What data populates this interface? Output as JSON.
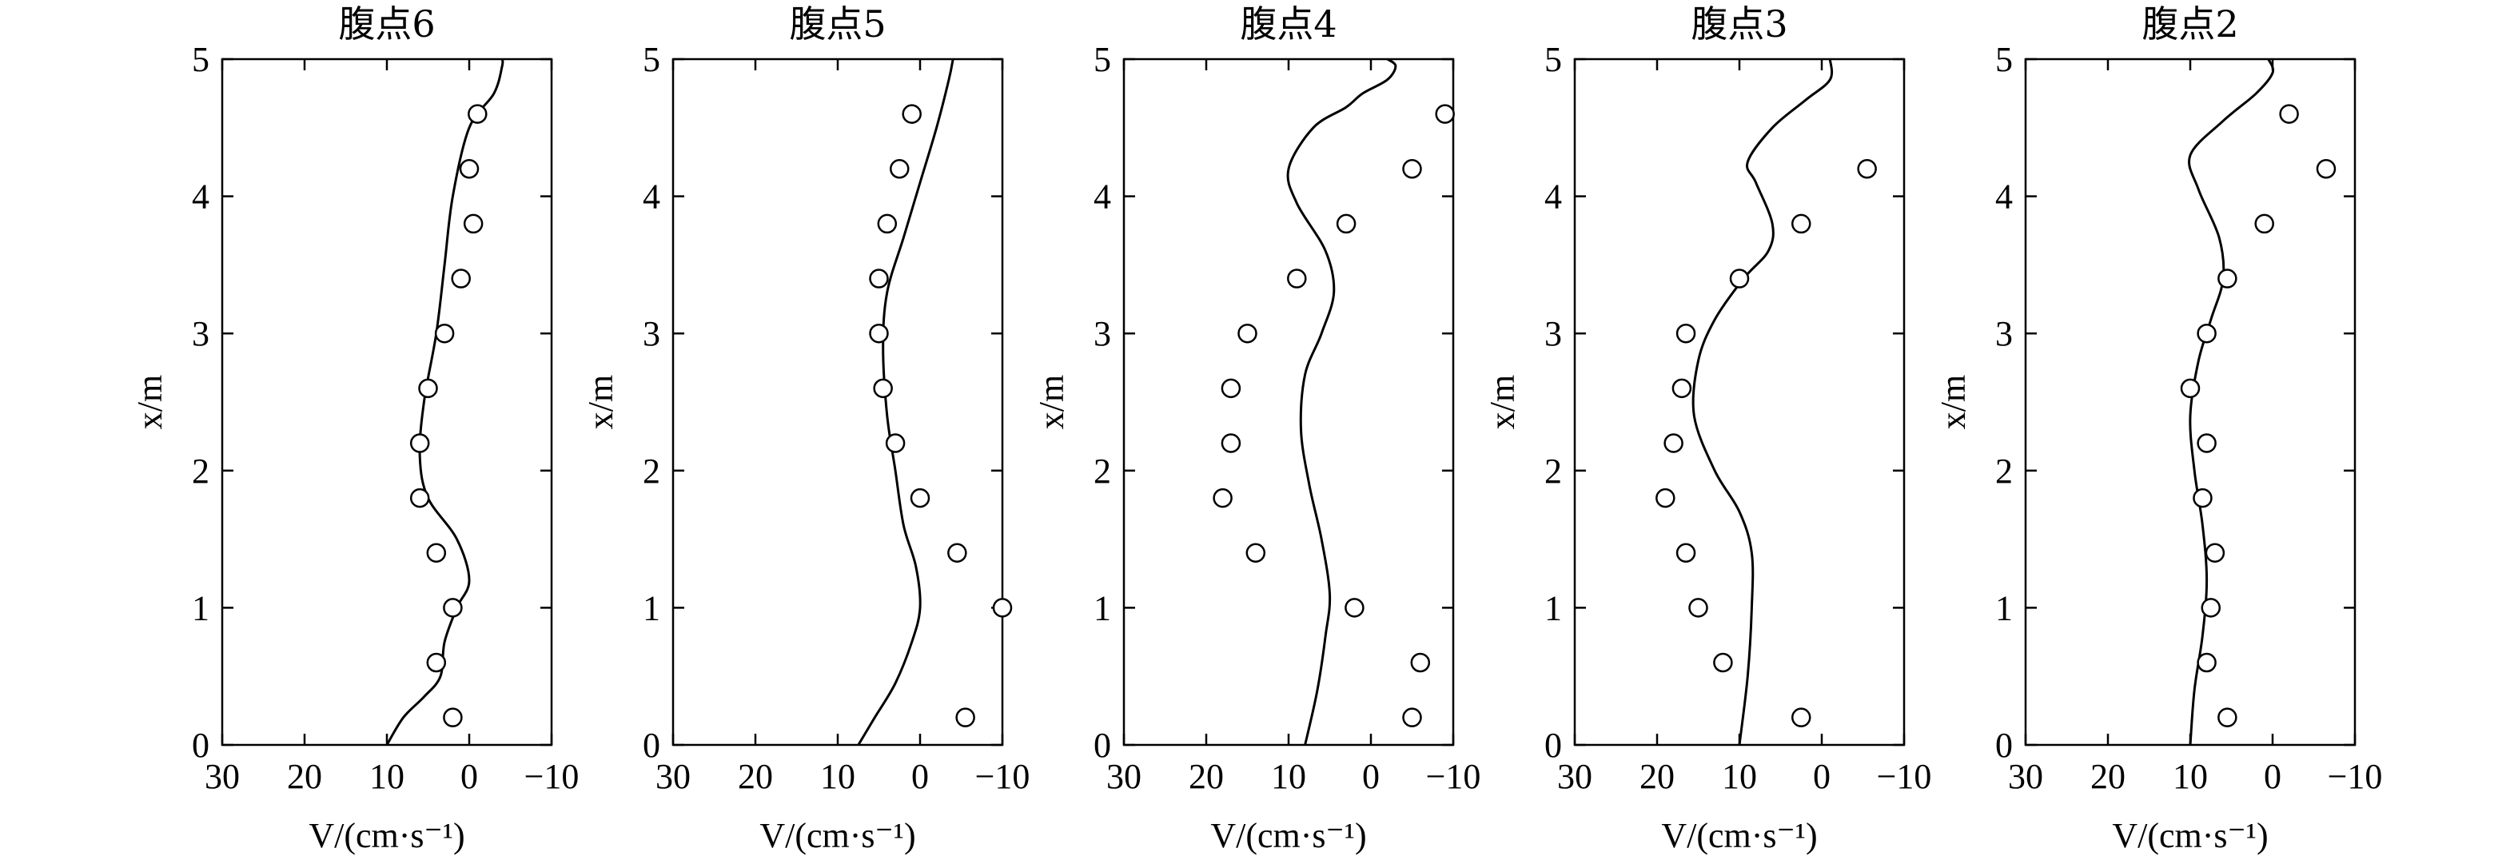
{
  "chart_data": [
    {
      "type": "line",
      "title": "腹点6",
      "xlabel": "V/(cm·s⁻¹)",
      "ylabel": "x/m",
      "xlim": [
        30,
        -10
      ],
      "ylim": [
        0,
        5
      ],
      "xticks": [
        30,
        20,
        10,
        0,
        -10
      ],
      "yticks": [
        0,
        1,
        2,
        3,
        4,
        5
      ],
      "series": [
        {
          "kind": "line",
          "points": [
            [
              10,
              0
            ],
            [
              8,
              0.2
            ],
            [
              5.5,
              0.35
            ],
            [
              3.5,
              0.5
            ],
            [
              3,
              0.75
            ],
            [
              1.5,
              1.0
            ],
            [
              0,
              1.2
            ],
            [
              1.5,
              1.5
            ],
            [
              5,
              1.8
            ],
            [
              6,
              2.1
            ],
            [
              5.5,
              2.5
            ],
            [
              4,
              3.0
            ],
            [
              3,
              3.5
            ],
            [
              2,
              4.0
            ],
            [
              0,
              4.5
            ],
            [
              -3,
              4.75
            ],
            [
              -4,
              4.95
            ],
            [
              -4,
              5.0
            ]
          ]
        },
        {
          "kind": "scatter",
          "points": [
            [
              2,
              0.2
            ],
            [
              4,
              0.6
            ],
            [
              2,
              1.0
            ],
            [
              4,
              1.4
            ],
            [
              6,
              1.8
            ],
            [
              6,
              2.2
            ],
            [
              5,
              2.6
            ],
            [
              3,
              3.0
            ],
            [
              1,
              3.4
            ],
            [
              -0.5,
              3.8
            ],
            [
              0,
              4.2
            ],
            [
              -1,
              4.6
            ]
          ]
        }
      ]
    },
    {
      "type": "line",
      "title": "腹点5",
      "xlabel": "V/(cm·s⁻¹)",
      "ylabel": "x/m",
      "xlim": [
        30,
        -10
      ],
      "ylim": [
        0,
        5
      ],
      "xticks": [
        30,
        20,
        10,
        0,
        -10
      ],
      "yticks": [
        0,
        1,
        2,
        3,
        4,
        5
      ],
      "series": [
        {
          "kind": "line",
          "points": [
            [
              7.5,
              0
            ],
            [
              5.5,
              0.2
            ],
            [
              3,
              0.45
            ],
            [
              1,
              0.75
            ],
            [
              0,
              1.0
            ],
            [
              0.5,
              1.3
            ],
            [
              2,
              1.6
            ],
            [
              3,
              2.0
            ],
            [
              4,
              2.4
            ],
            [
              4.5,
              2.9
            ],
            [
              4,
              3.3
            ],
            [
              2,
              3.7
            ],
            [
              0,
              4.1
            ],
            [
              -2,
              4.5
            ],
            [
              -3.5,
              4.85
            ],
            [
              -4,
              5.0
            ]
          ]
        },
        {
          "kind": "scatter",
          "points": [
            [
              -5.5,
              0.2
            ],
            [
              -10,
              1.0
            ],
            [
              -4.5,
              1.4
            ],
            [
              0,
              1.8
            ],
            [
              3,
              2.2
            ],
            [
              4.5,
              2.6
            ],
            [
              5,
              3.0
            ],
            [
              5,
              3.4
            ],
            [
              4,
              3.8
            ],
            [
              2.5,
              4.2
            ],
            [
              1,
              4.6
            ]
          ]
        }
      ]
    },
    {
      "type": "line",
      "title": "腹点4",
      "xlabel": "V/(cm·s⁻¹)",
      "ylabel": "x/m",
      "xlim": [
        30,
        -10
      ],
      "ylim": [
        0,
        5
      ],
      "xticks": [
        30,
        20,
        10,
        0,
        -10
      ],
      "yticks": [
        0,
        1,
        2,
        3,
        4,
        5
      ],
      "series": [
        {
          "kind": "line",
          "points": [
            [
              8,
              0
            ],
            [
              6.5,
              0.4
            ],
            [
              5.5,
              0.8
            ],
            [
              5,
              1.1
            ],
            [
              6,
              1.5
            ],
            [
              7.5,
              1.9
            ],
            [
              8.5,
              2.3
            ],
            [
              8,
              2.7
            ],
            [
              6,
              3.0
            ],
            [
              4.5,
              3.3
            ],
            [
              5.5,
              3.6
            ],
            [
              9,
              3.95
            ],
            [
              10,
              4.2
            ],
            [
              7,
              4.5
            ],
            [
              3,
              4.65
            ],
            [
              1,
              4.75
            ],
            [
              -2,
              4.85
            ],
            [
              -3,
              4.95
            ],
            [
              -2,
              5.0
            ]
          ]
        },
        {
          "kind": "scatter",
          "points": [
            [
              -5,
              0.2
            ],
            [
              -6,
              0.6
            ],
            [
              2,
              1.0
            ],
            [
              14,
              1.4
            ],
            [
              18,
              1.8
            ],
            [
              17,
              2.2
            ],
            [
              17,
              2.6
            ],
            [
              15,
              3.0
            ],
            [
              9,
              3.4
            ],
            [
              3,
              3.8
            ],
            [
              -5,
              4.2
            ],
            [
              -9,
              4.6
            ]
          ]
        }
      ]
    },
    {
      "type": "line",
      "title": "腹点3",
      "xlabel": "V/(cm·s⁻¹)",
      "ylabel": "x/m",
      "xlim": [
        30,
        -10
      ],
      "ylim": [
        0,
        5
      ],
      "xticks": [
        30,
        20,
        10,
        0,
        -10
      ],
      "yticks": [
        0,
        1,
        2,
        3,
        4,
        5
      ],
      "series": [
        {
          "kind": "line",
          "points": [
            [
              10,
              0
            ],
            [
              9,
              0.5
            ],
            [
              8.5,
              1.0
            ],
            [
              8.5,
              1.4
            ],
            [
              10,
              1.7
            ],
            [
              13,
              2.0
            ],
            [
              15.5,
              2.4
            ],
            [
              15,
              2.8
            ],
            [
              13,
              3.1
            ],
            [
              9.5,
              3.4
            ],
            [
              6.5,
              3.6
            ],
            [
              6,
              3.8
            ],
            [
              8,
              4.1
            ],
            [
              9,
              4.25
            ],
            [
              6,
              4.5
            ],
            [
              2,
              4.7
            ],
            [
              -1,
              4.85
            ],
            [
              -1,
              5.0
            ]
          ]
        },
        {
          "kind": "scatter",
          "points": [
            [
              2.5,
              0.2
            ],
            [
              12,
              0.6
            ],
            [
              15,
              1.0
            ],
            [
              16.5,
              1.4
            ],
            [
              19,
              1.8
            ],
            [
              18,
              2.2
            ],
            [
              17,
              2.6
            ],
            [
              16.5,
              3.0
            ],
            [
              10,
              3.4
            ],
            [
              2.5,
              3.8
            ],
            [
              -5.5,
              4.2
            ]
          ]
        }
      ]
    },
    {
      "type": "line",
      "title": "腹点2",
      "xlabel": "V/(cm·s⁻¹)",
      "ylabel": "x/m",
      "xlim": [
        30,
        -10
      ],
      "ylim": [
        0,
        5
      ],
      "xticks": [
        30,
        20,
        10,
        0,
        -10
      ],
      "yticks": [
        0,
        1,
        2,
        3,
        4,
        5
      ],
      "series": [
        {
          "kind": "line",
          "points": [
            [
              10,
              0
            ],
            [
              9.5,
              0.4
            ],
            [
              8.5,
              0.8
            ],
            [
              8,
              1.2
            ],
            [
              8.5,
              1.6
            ],
            [
              9.5,
              2.0
            ],
            [
              10,
              2.4
            ],
            [
              9,
              2.8
            ],
            [
              7.5,
              3.1
            ],
            [
              6,
              3.4
            ],
            [
              6.5,
              3.7
            ],
            [
              9,
              4.05
            ],
            [
              10,
              4.3
            ],
            [
              6,
              4.55
            ],
            [
              2,
              4.75
            ],
            [
              0,
              4.9
            ],
            [
              0.5,
              5.0
            ]
          ]
        },
        {
          "kind": "scatter",
          "points": [
            [
              5.5,
              0.2
            ],
            [
              8,
              0.6
            ],
            [
              7.5,
              1.0
            ],
            [
              7,
              1.4
            ],
            [
              8.5,
              1.8
            ],
            [
              8,
              2.2
            ],
            [
              10,
              2.6
            ],
            [
              8,
              3.0
            ],
            [
              5.5,
              3.4
            ],
            [
              1,
              3.8
            ],
            [
              -6.5,
              4.2
            ],
            [
              -2,
              4.6
            ]
          ]
        }
      ]
    }
  ]
}
